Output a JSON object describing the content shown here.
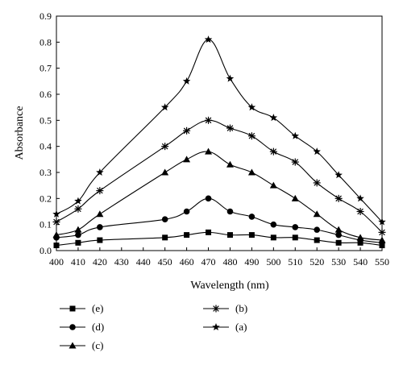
{
  "chart_data": {
    "type": "line",
    "title": "",
    "xlabel": "Wavelength (nm)",
    "ylabel": "Absorbance",
    "xlim": [
      400,
      550
    ],
    "ylim": [
      0.0,
      0.9
    ],
    "x_ticks": [
      400,
      410,
      420,
      430,
      440,
      450,
      460,
      470,
      480,
      490,
      500,
      510,
      520,
      530,
      540,
      550
    ],
    "y_ticks": [
      "0.0",
      "0.1",
      "0.2",
      "0.3",
      "0.4",
      "0.5",
      "0.6",
      "0.7",
      "0.8",
      "0.9"
    ],
    "grid": false,
    "legend_position": "bottom",
    "series": [
      {
        "name": "(a)",
        "marker": "star",
        "x": [
          400,
          410,
          420,
          450,
          460,
          470,
          480,
          490,
          500,
          510,
          520,
          530,
          540,
          550
        ],
        "y": [
          0.14,
          0.19,
          0.3,
          0.55,
          0.65,
          0.81,
          0.66,
          0.55,
          0.51,
          0.44,
          0.38,
          0.29,
          0.2,
          0.11
        ]
      },
      {
        "name": "(b)",
        "marker": "asterisk",
        "x": [
          400,
          410,
          420,
          450,
          460,
          470,
          480,
          490,
          500,
          510,
          520,
          530,
          540,
          550
        ],
        "y": [
          0.11,
          0.16,
          0.23,
          0.4,
          0.46,
          0.5,
          0.47,
          0.44,
          0.38,
          0.34,
          0.26,
          0.2,
          0.15,
          0.07
        ]
      },
      {
        "name": "(c)",
        "marker": "triangle",
        "x": [
          400,
          410,
          420,
          450,
          460,
          470,
          480,
          490,
          500,
          510,
          520,
          530,
          540,
          550
        ],
        "y": [
          0.06,
          0.08,
          0.14,
          0.3,
          0.35,
          0.38,
          0.33,
          0.3,
          0.25,
          0.2,
          0.14,
          0.08,
          0.05,
          0.04
        ]
      },
      {
        "name": "(d)",
        "marker": "circle",
        "x": [
          400,
          410,
          420,
          450,
          460,
          470,
          480,
          490,
          500,
          510,
          520,
          530,
          540,
          550
        ],
        "y": [
          0.05,
          0.06,
          0.09,
          0.12,
          0.15,
          0.2,
          0.15,
          0.13,
          0.1,
          0.09,
          0.08,
          0.06,
          0.04,
          0.03
        ]
      },
      {
        "name": "(e)",
        "marker": "square",
        "x": [
          400,
          410,
          420,
          450,
          460,
          470,
          480,
          490,
          500,
          510,
          520,
          530,
          540,
          550
        ],
        "y": [
          0.02,
          0.03,
          0.04,
          0.05,
          0.06,
          0.07,
          0.06,
          0.06,
          0.05,
          0.05,
          0.04,
          0.03,
          0.03,
          0.02
        ]
      }
    ],
    "legend_order": [
      "(e)",
      "(b)",
      "(d)",
      "(a)",
      "(c)"
    ]
  }
}
